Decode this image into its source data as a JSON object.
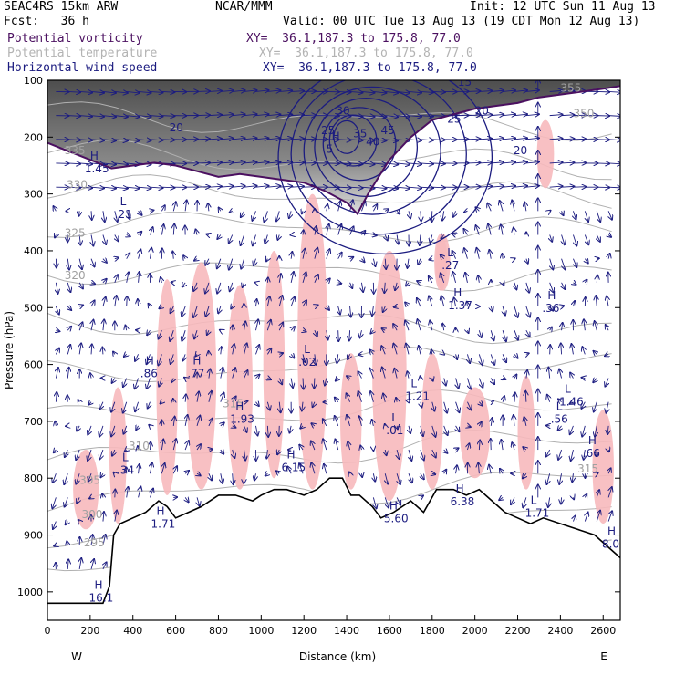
{
  "header": {
    "model": "SEAC4RS 15km ARW",
    "org": "NCAR/MMM",
    "init": "Init: 12 UTC Sun 11 Aug 13",
    "fcst": "Fcst:   36 h",
    "valid": "Valid: 00 UTC Tue 13 Aug 13 (19 CDT Mon 12 Aug 13)"
  },
  "legend": [
    {
      "name": "Potential vorticity",
      "xy": "XY=  36.1,187.3 to 175.8, 77.0",
      "color": "#4b1060"
    },
    {
      "name": "Potential temperature",
      "xy": "XY=  36.1,187.3 to 175.8, 77.0",
      "color": "#b3b3b3"
    },
    {
      "name": "Horizontal wind speed",
      "xy": "XY=  36.1,187.3 to 175.8, 77.0",
      "color": "#1c1c80"
    }
  ],
  "chart_data": {
    "type": "cross-section",
    "xlabel": "Distance (km)",
    "ylabel": "Pressure (hPa)",
    "xlim": [
      0,
      2680
    ],
    "ylim": [
      1050,
      100
    ],
    "x_ticks": [
      0,
      200,
      400,
      600,
      800,
      1000,
      1200,
      1400,
      1600,
      1800,
      2000,
      2200,
      2400,
      2600
    ],
    "y_ticks": [
      100,
      200,
      300,
      400,
      500,
      600,
      700,
      800,
      900,
      1000
    ],
    "x_start_label": "W",
    "x_end_label": "E",
    "terrain_km_hpa": [
      [
        0,
        1020
      ],
      [
        200,
        1020
      ],
      [
        260,
        1020
      ],
      [
        290,
        990
      ],
      [
        310,
        900
      ],
      [
        340,
        880
      ],
      [
        400,
        870
      ],
      [
        460,
        860
      ],
      [
        520,
        840
      ],
      [
        560,
        850
      ],
      [
        600,
        870
      ],
      [
        660,
        860
      ],
      [
        720,
        850
      ],
      [
        800,
        830
      ],
      [
        880,
        830
      ],
      [
        960,
        840
      ],
      [
        1000,
        830
      ],
      [
        1060,
        820
      ],
      [
        1120,
        820
      ],
      [
        1200,
        830
      ],
      [
        1260,
        820
      ],
      [
        1320,
        800
      ],
      [
        1380,
        800
      ],
      [
        1420,
        830
      ],
      [
        1460,
        830
      ],
      [
        1520,
        850
      ],
      [
        1560,
        870
      ],
      [
        1620,
        860
      ],
      [
        1700,
        840
      ],
      [
        1760,
        860
      ],
      [
        1820,
        820
      ],
      [
        1900,
        820
      ],
      [
        1960,
        830
      ],
      [
        2020,
        820
      ],
      [
        2080,
        840
      ],
      [
        2140,
        860
      ],
      [
        2200,
        870
      ],
      [
        2260,
        880
      ],
      [
        2320,
        870
      ],
      [
        2400,
        880
      ],
      [
        2480,
        890
      ],
      [
        2560,
        900
      ],
      [
        2620,
        920
      ],
      [
        2680,
        940
      ]
    ],
    "pv_tropopause_km_hpa": [
      [
        0,
        210
      ],
      [
        100,
        225
      ],
      [
        200,
        240
      ],
      [
        300,
        255
      ],
      [
        400,
        250
      ],
      [
        500,
        245
      ],
      [
        600,
        250
      ],
      [
        700,
        260
      ],
      [
        800,
        270
      ],
      [
        900,
        265
      ],
      [
        1000,
        270
      ],
      [
        1100,
        275
      ],
      [
        1200,
        280
      ],
      [
        1300,
        295
      ],
      [
        1400,
        315
      ],
      [
        1450,
        335
      ],
      [
        1500,
        300
      ],
      [
        1600,
        240
      ],
      [
        1700,
        200
      ],
      [
        1800,
        170
      ],
      [
        1900,
        160
      ],
      [
        2000,
        150
      ],
      [
        2100,
        145
      ],
      [
        2200,
        140
      ],
      [
        2300,
        130
      ],
      [
        2400,
        125
      ],
      [
        2500,
        120
      ],
      [
        2600,
        115
      ],
      [
        2680,
        110
      ]
    ],
    "wind_jet_center_km_hpa": [
      1400,
      200
    ],
    "wind_contour_labels": [
      "20",
      "25",
      "30",
      "35",
      "40",
      "45",
      "15",
      "20",
      "25",
      "20"
    ],
    "theta_labels": [
      "335",
      "330",
      "325",
      "320",
      "315",
      "310",
      "305",
      "300",
      "295",
      "350",
      "355",
      "315"
    ],
    "pv_labels": [
      {
        "text": "H",
        "value": "1.45"
      },
      {
        "text": "L",
        "value": ".21"
      },
      {
        "text": "H",
        "value": ".86"
      },
      {
        "text": "H",
        "value": ".77"
      },
      {
        "text": "L",
        "value": ".02"
      },
      {
        "text": "L",
        "value": "1.21"
      },
      {
        "text": "H",
        "value": "1.37"
      },
      {
        "text": "H",
        "value": "1.93"
      },
      {
        "text": "H",
        "value": "6.15"
      },
      {
        "text": "L",
        "value": ".01"
      },
      {
        "text": "L",
        "value": ".34"
      },
      {
        "text": "H",
        "value": "6.38"
      },
      {
        "text": "H",
        "value": "5.60"
      },
      {
        "text": "L",
        "value": "1.71"
      },
      {
        "text": "H",
        "value": ".66"
      },
      {
        "text": "L",
        "value": ".56"
      },
      {
        "text": "H",
        "value": "8.0"
      },
      {
        "text": "H",
        "value": "16.1"
      },
      {
        "text": "H",
        "value": "1.71"
      },
      {
        "text": "L",
        "value": ".27"
      },
      {
        "text": "H",
        "value": ".36"
      },
      {
        "text": "H",
        "value": "5"
      },
      {
        "text": "L",
        "value": "1.46"
      }
    ],
    "grid": false
  }
}
